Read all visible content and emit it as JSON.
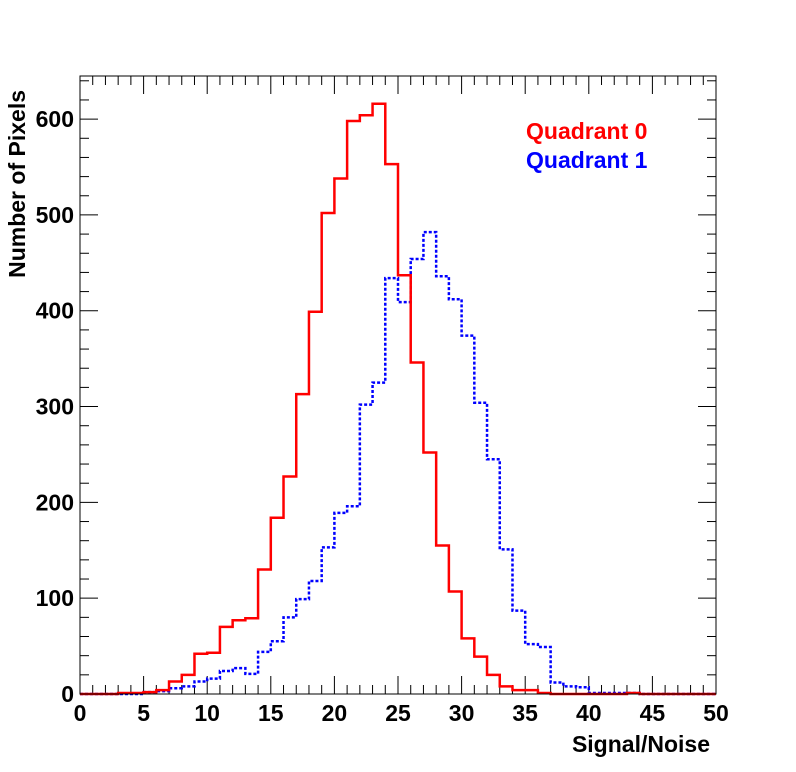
{
  "chart_data": {
    "type": "line",
    "style": "step-histogram",
    "title": "",
    "xlabel": "Signal/Noise",
    "ylabel": "Number of Pixels",
    "xlim": [
      0,
      50
    ],
    "ylim": [
      0,
      645
    ],
    "x_ticks": [
      0,
      5,
      10,
      15,
      20,
      25,
      30,
      35,
      40,
      45,
      50
    ],
    "x_tick_labels": [
      "0",
      "5",
      "10",
      "15",
      "20",
      "25",
      "30",
      "35",
      "40",
      "45",
      "50"
    ],
    "y_ticks": [
      0,
      100,
      200,
      300,
      400,
      500,
      600
    ],
    "y_tick_labels": [
      "0",
      "100",
      "200",
      "300",
      "400",
      "500",
      "600"
    ],
    "grid": false,
    "legend_position": "top-right",
    "bin_edges": [
      0,
      1,
      2,
      3,
      4,
      5,
      6,
      7,
      8,
      9,
      10,
      11,
      12,
      13,
      14,
      15,
      16,
      17,
      18,
      19,
      20,
      21,
      22,
      23,
      24,
      25,
      26,
      27,
      28,
      29,
      30,
      31,
      32,
      33,
      34,
      35,
      36,
      37,
      38,
      39,
      40,
      41,
      42,
      43,
      44,
      45,
      46,
      47,
      48,
      49,
      50
    ],
    "series": [
      {
        "name": "Quadrant 0",
        "color": "#ff0000",
        "line_style": "solid",
        "values": [
          0,
          0,
          0,
          1,
          1,
          2,
          4,
          13,
          20,
          42,
          43,
          70,
          77,
          79,
          130,
          184,
          227,
          313,
          399,
          502,
          538,
          598,
          604,
          616,
          553,
          437,
          346,
          252,
          155,
          107,
          58,
          39,
          20,
          8,
          4,
          4,
          1,
          0,
          0,
          0,
          0,
          0,
          0,
          1,
          0,
          0,
          0,
          0,
          0,
          0
        ]
      },
      {
        "name": "Quadrant 1",
        "color": "#0000ff",
        "line_style": "dotted",
        "values": [
          0,
          0,
          0,
          0,
          0,
          2,
          3,
          6,
          8,
          13,
          16,
          24,
          27,
          21,
          44,
          55,
          80,
          99,
          118,
          153,
          189,
          196,
          302,
          325,
          434,
          409,
          454,
          482,
          436,
          412,
          374,
          304,
          245,
          151,
          87,
          52,
          49,
          12,
          8,
          7,
          1,
          1,
          1,
          1,
          0,
          0,
          0,
          0,
          0,
          0
        ]
      }
    ]
  }
}
